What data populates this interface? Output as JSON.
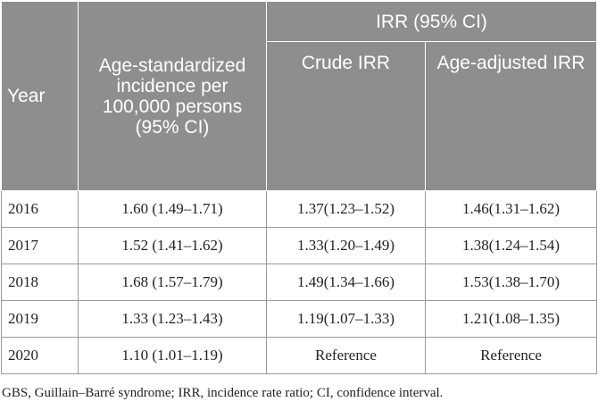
{
  "table": {
    "headers": {
      "year": "Year",
      "incidence": "Age-standardized incidence per 100,000 persons (95% CI)",
      "group": "IRR (95% CI)",
      "crude": "Crude IRR",
      "adjusted": "Age-adjusted IRR"
    },
    "rows": [
      {
        "year": "2016",
        "incidence": "1.60 (1.49–1.71)",
        "crude": "1.37(1.23–1.52)",
        "adjusted": "1.46(1.31–1.62)"
      },
      {
        "year": "2017",
        "incidence": "1.52 (1.41–1.62)",
        "crude": "1.33(1.20–1.49)",
        "adjusted": "1.38(1.24–1.54)"
      },
      {
        "year": "2018",
        "incidence": "1.68 (1.57–1.79)",
        "crude": "1.49(1.34–1.66)",
        "adjusted": "1.53(1.38–1.70)"
      },
      {
        "year": "2019",
        "incidence": "1.33 (1.23–1.43)",
        "crude": "1.19(1.07–1.33)",
        "adjusted": "1.21(1.08–1.35)"
      },
      {
        "year": "2020",
        "incidence": "1.10 (1.01–1.19)",
        "crude": "Reference",
        "adjusted": "Reference"
      }
    ]
  },
  "footnote": "GBS, Guillain–Barré syndrome; IRR, incidence rate ratio; CI, confidence interval.",
  "colors": {
    "header_bg": "#8d8f8e",
    "header_text": "#ffffff",
    "border": "#9a9a9a"
  }
}
